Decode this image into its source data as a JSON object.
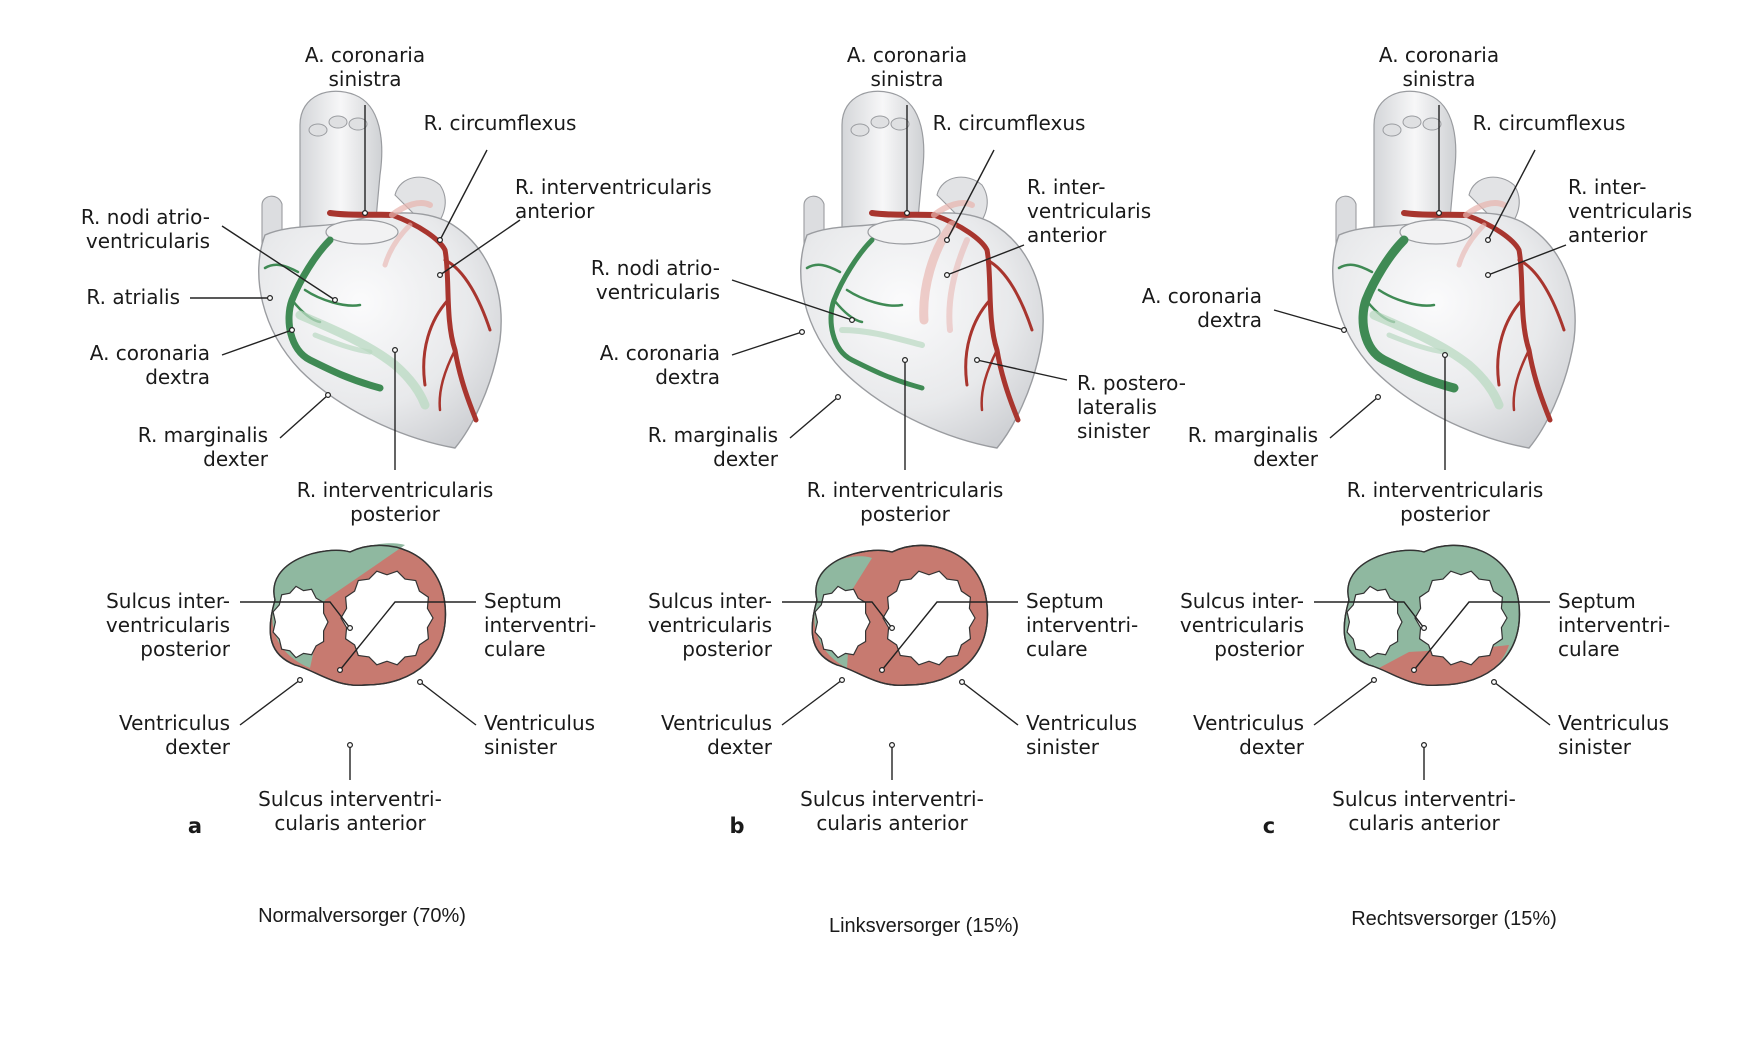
{
  "colors": {
    "right_coronary": "#3f8a54",
    "right_coronary_faint": "#b9d9c2",
    "left_coronary": "#a8352e",
    "left_coronary_faint": "#e8b3ae",
    "left_supply_region": "#c77a70",
    "right_supply_region": "#8fb8a0",
    "heart_surface": "#e9eaec",
    "heart_outline": "#9a9ca0"
  },
  "panels": [
    {
      "id": "a",
      "letter": "a",
      "caption": "Normalversorger (70%)",
      "labels": {
        "a_coronaria_sinistra": [
          "A. coronaria",
          "sinistra"
        ],
        "r_circumflexus": [
          "R. circumflexus"
        ],
        "r_interventricularis_anterior": [
          "R. interventricularis",
          "anterior"
        ],
        "r_nodi": [
          "R. nodi atrio-",
          "ventricularis"
        ],
        "r_atrialis": [
          "R. atrialis"
        ],
        "a_coronaria_dextra": [
          "A. coronaria",
          "dextra"
        ],
        "r_marginalis": [
          "R. marginalis",
          "dexter"
        ],
        "r_iv_posterior": [
          "R. interventricularis",
          "posterior"
        ],
        "sulcus_posterior": [
          "Sulcus inter-",
          "ventricularis",
          "posterior"
        ],
        "septum": [
          "Septum",
          "interventri-",
          "culare"
        ],
        "ventriculus_dexter": [
          "Ventriculus",
          "dexter"
        ],
        "ventriculus_sinister": [
          "Ventriculus",
          "sinister"
        ],
        "sulcus_anterior": [
          "Sulcus interventri-",
          "cularis anterior"
        ]
      }
    },
    {
      "id": "b",
      "letter": "b",
      "caption": "Linksversorger (15%)",
      "labels": {
        "a_coronaria_sinistra": [
          "A. coronaria",
          "sinistra"
        ],
        "r_circumflexus": [
          "R. circumflexus"
        ],
        "r_interventricularis_anterior": [
          "R. inter-",
          "ventricularis",
          "anterior"
        ],
        "r_nodi": [
          "R. nodi atrio-",
          "ventricularis"
        ],
        "a_coronaria_dextra": [
          "A. coronaria",
          "dextra"
        ],
        "r_posterolateralis": [
          "R. postero-",
          "lateralis",
          "sinister"
        ],
        "r_marginalis": [
          "R. marginalis",
          "dexter"
        ],
        "r_iv_posterior": [
          "R. interventricularis",
          "posterior"
        ],
        "sulcus_posterior": [
          "Sulcus inter-",
          "ventricularis",
          "posterior"
        ],
        "septum": [
          "Septum",
          "interventri-",
          "culare"
        ],
        "ventriculus_dexter": [
          "Ventriculus",
          "dexter"
        ],
        "ventriculus_sinister": [
          "Ventriculus",
          "sinister"
        ],
        "sulcus_anterior": [
          "Sulcus interventri-",
          "cularis anterior"
        ]
      }
    },
    {
      "id": "c",
      "letter": "c",
      "caption": "Rechtsversorger (15%)",
      "labels": {
        "a_coronaria_sinistra": [
          "A. coronaria",
          "sinistra"
        ],
        "r_circumflexus": [
          "R. circumflexus"
        ],
        "r_interventricularis_anterior": [
          "R. inter-",
          "ventricularis",
          "anterior"
        ],
        "a_coronaria_dextra": [
          "A. coronaria",
          "dextra"
        ],
        "r_marginalis": [
          "R. marginalis",
          "dexter"
        ],
        "r_iv_posterior": [
          "R. interventricularis",
          "posterior"
        ],
        "sulcus_posterior": [
          "Sulcus inter-",
          "ventricularis",
          "posterior"
        ],
        "septum": [
          "Septum",
          "interventri-",
          "culare"
        ],
        "ventriculus_dexter": [
          "Ventriculus",
          "dexter"
        ],
        "ventriculus_sinister": [
          "Ventriculus",
          "sinister"
        ],
        "sulcus_anterior": [
          "Sulcus interventri-",
          "cularis anterior"
        ]
      }
    }
  ]
}
